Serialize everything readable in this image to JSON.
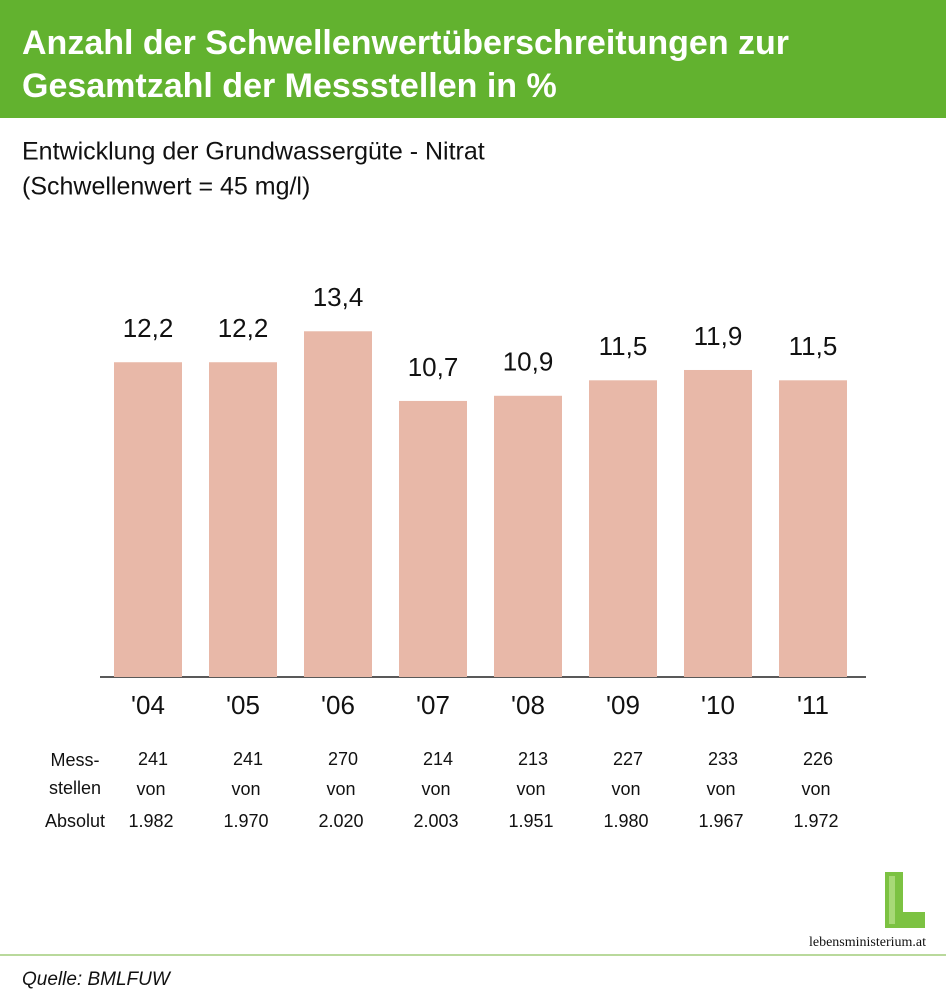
{
  "chart_data": {
    "type": "bar",
    "title": [
      "Anzahl der Schwellenwertüberschreitungen zur",
      "Gesamtzahl der Messstellen in %"
    ],
    "subtitle": [
      "Entwicklung der Grundwassergüte - Nitrat",
      "(Schwellenwert = 45 mg/l)"
    ],
    "categories": [
      "'04",
      "'05",
      "'06",
      "'07",
      "'08",
      "'09",
      "'10",
      "'11"
    ],
    "values": [
      12.2,
      12.2,
      13.4,
      10.7,
      10.9,
      11.5,
      11.9,
      11.5
    ],
    "value_labels": [
      "12,2",
      "12,2",
      "13,4",
      "10,7",
      "10,9",
      "11,5",
      "11,9",
      "11,5"
    ],
    "color": "#e8b8a8",
    "table": {
      "row_label": [
        "Mess-",
        "stellen",
        "Absolut"
      ],
      "counts": [
        "241",
        "241",
        "270",
        "214",
        "213",
        "227",
        "233",
        "226"
      ],
      "connector": "von",
      "totals": [
        "1.982",
        "1.970",
        "2.020",
        "2.003",
        "1.951",
        "1.980",
        "1.967",
        "1.972"
      ]
    },
    "source": "Quelle: BMLFUW",
    "logo": "lebensministerium.at"
  }
}
